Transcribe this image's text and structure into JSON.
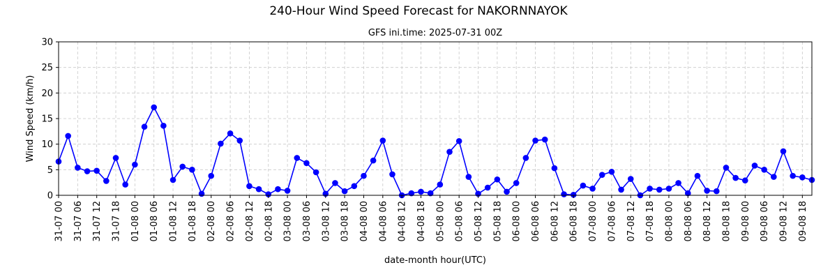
{
  "figure": {
    "title": "240-Hour Wind Speed Forecast for NAKORNNAYOK"
  },
  "chart_data": {
    "type": "line",
    "title": "GFS ini.time: 2025-07-31 00Z",
    "xlabel": "date-month hour(UTC)",
    "ylabel": "Wind Speed (km/h)",
    "ylim": [
      0,
      30
    ],
    "yticks": [
      0,
      5,
      10,
      15,
      20,
      25,
      30
    ],
    "grid": true,
    "x_step_hours": 3,
    "xtick_every": 2,
    "xticks": [
      "31-07 00",
      "31-07 06",
      "31-07 12",
      "31-07 18",
      "01-08 00",
      "01-08 06",
      "01-08 12",
      "01-08 18",
      "02-08 00",
      "02-08 06",
      "02-08 12",
      "02-08 18",
      "03-08 00",
      "03-08 06",
      "03-08 12",
      "03-08 18",
      "04-08 00",
      "04-08 06",
      "04-08 12",
      "04-08 18",
      "05-08 00",
      "05-08 06",
      "05-08 12",
      "05-08 18",
      "06-08 00",
      "06-08 06",
      "06-08 12",
      "06-08 18",
      "07-08 00",
      "07-08 06",
      "07-08 12",
      "07-08 18",
      "08-08 00",
      "08-08 06",
      "08-08 12",
      "08-08 18",
      "09-08 00",
      "09-08 06",
      "09-08 12",
      "09-08 18"
    ],
    "series": [
      {
        "color": "#0000ff",
        "values": [
          6.6,
          11.6,
          5.4,
          4.7,
          4.8,
          2.8,
          7.3,
          2.1,
          6.0,
          13.4,
          17.2,
          13.6,
          3.0,
          5.6,
          5.0,
          0.3,
          3.8,
          10.1,
          12.1,
          10.7,
          1.8,
          1.2,
          0.2,
          1.2,
          0.9,
          7.3,
          6.3,
          4.5,
          0.3,
          2.4,
          0.8,
          1.8,
          3.8,
          6.8,
          10.7,
          4.1,
          0.0,
          0.4,
          0.7,
          0.4,
          2.1,
          8.5,
          10.6,
          3.6,
          0.3,
          1.5,
          3.1,
          0.7,
          2.4,
          7.3,
          10.7,
          10.9,
          5.3,
          0.2,
          0.1,
          1.9,
          1.3,
          4.0,
          4.6,
          1.1,
          3.2,
          0.0,
          1.3,
          1.1,
          1.3,
          2.4,
          0.4,
          3.8,
          0.9,
          0.8,
          5.4,
          3.4,
          2.9,
          5.8,
          5.0,
          3.6,
          8.6,
          3.8,
          3.5,
          3.0
        ]
      }
    ]
  }
}
